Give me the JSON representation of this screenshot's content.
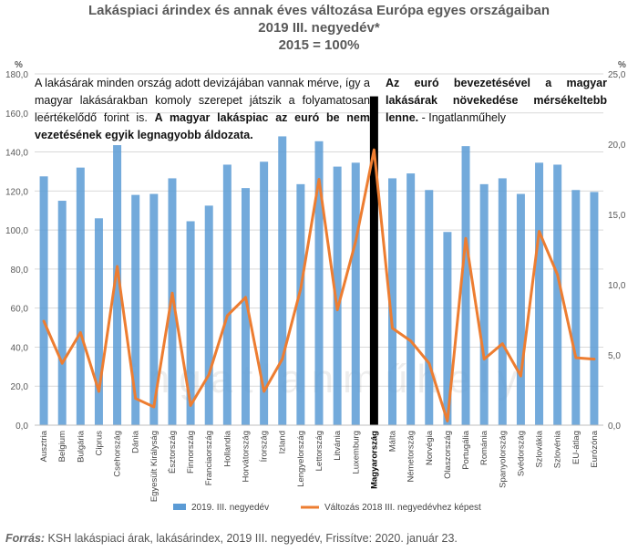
{
  "title_lines": [
    "Lakáspiaci árindex  és annak éves változása Európa egyes országaiban",
    "2019 III. negyedév*",
    "2015 = 100%"
  ],
  "annotation_left": {
    "normal": "A lakásárak minden ország adott devizájában vannak mérve, így a magyar lakásárakban komoly szerepet játszik a folyamatosan leértékelődő forint is.",
    "bold": "A magyar lakáspiac az euró be nem vezetésének egyik legnagyobb áldozata."
  },
  "annotation_right": {
    "bold": "Az euró bevezetésével a magyar lakásárak növekedése mérsékeltebb lenne.",
    "normal": " - Ingatlanműhely"
  },
  "watermark": "ingatlanműhely",
  "footer": {
    "source_label": "Forrás:",
    "source_text": " KSH lakáspiaci árak, lakásárindex, 2019 III. negyedév, Frissítve: 2020. január 23."
  },
  "colors": {
    "bar": "#5B9BD5",
    "line": "#ED7D31",
    "highlight": "#000000",
    "grid": "#D9D9D9"
  },
  "chart_data": {
    "type": "bar+line",
    "categories": [
      "Ausztria",
      "Belgium",
      "Bulgária",
      "Ciprus",
      "Csehország",
      "Dánia",
      "Egyesült Királyság",
      "Észtország",
      "Finnország",
      "Franciaország",
      "Hollandia",
      "Horvátország",
      "Írország",
      "Izland",
      "Lengyelország",
      "Lettország",
      "Litvánia",
      "Luxemburg",
      "Magyarország",
      "Málta",
      "Németország",
      "Norvégia",
      "Olaszország",
      "Portugália",
      "Románia",
      "Spanyolország",
      "Svédország",
      "Szlovákia",
      "Szlovénia",
      "EU-átlag",
      "Eurózóna"
    ],
    "highlight_category": "Magyarország",
    "series": [
      {
        "name": "2019. III. negyedév",
        "type": "bar",
        "axis": "left",
        "values": [
          127.5,
          115,
          132,
          106,
          143.5,
          118,
          118.5,
          126.5,
          104.5,
          112.5,
          133.5,
          121.5,
          135,
          148,
          123.5,
          145.5,
          132.5,
          134.5,
          168.5,
          126.5,
          129,
          120.5,
          99,
          143,
          123.5,
          126.5,
          118.5,
          134.5,
          133.5,
          120.5,
          119.5
        ]
      },
      {
        "name": "Változás 2018 III. negyedévhez képest",
        "type": "line",
        "axis": "right",
        "values": [
          7.4,
          4.4,
          6.6,
          2.4,
          11.3,
          1.9,
          1.3,
          9.4,
          1.4,
          3.6,
          7.8,
          9.1,
          2.4,
          4.7,
          9.7,
          17.5,
          8.2,
          13.1,
          19.6,
          6.9,
          6.0,
          4.4,
          0.3,
          13.3,
          4.7,
          5.8,
          3.5,
          13.8,
          10.7,
          4.8,
          4.7
        ]
      }
    ],
    "y_left": {
      "label": "%",
      "min": 0,
      "max": 180,
      "ticks": [
        "0,0",
        "20,0",
        "40,0",
        "60,0",
        "80,0",
        "100,0",
        "120,0",
        "140,0",
        "160,0",
        "180,0"
      ]
    },
    "y_right": {
      "label": "%",
      "min": 0,
      "max": 25,
      "ticks": [
        "0,0",
        "5,0",
        "10,0",
        "15,0",
        "20,0",
        "25,0"
      ]
    },
    "legend_position": "bottom"
  }
}
